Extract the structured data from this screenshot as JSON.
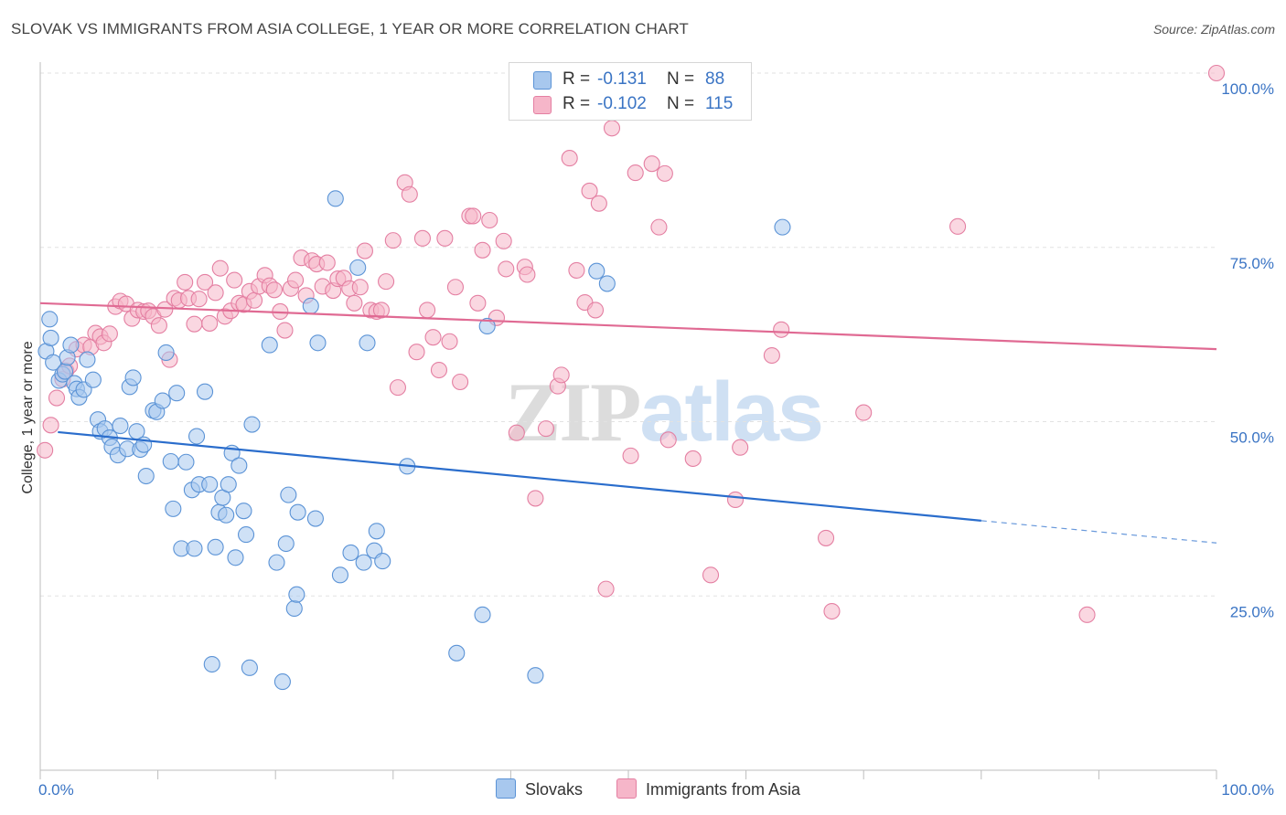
{
  "title": "SLOVAK VS IMMIGRANTS FROM ASIA COLLEGE, 1 YEAR OR MORE CORRELATION CHART",
  "source": "Source: ZipAtlas.com",
  "watermark": {
    "part1": "ZIP",
    "part2": "atlas"
  },
  "legend": {
    "rows": [
      {
        "r_label": "R =",
        "r_value": "-0.131",
        "n_label": "N =",
        "n_value": "88",
        "color": "#a8c8ee"
      },
      {
        "r_label": "R =",
        "r_value": "-0.102",
        "n_label": "N =",
        "n_value": "115",
        "color": "#f6b6c9"
      }
    ]
  },
  "colors": {
    "slovak_fill": "#a8c8ee",
    "slovak_stroke": "#5b93d6",
    "slovak_line": "#2a6dcc",
    "asia_fill": "#f6b6c9",
    "asia_stroke": "#e47fa2",
    "asia_line": "#e06a93",
    "tick_text": "#3a74c4",
    "grid": "#e2e2e2"
  },
  "chart_data": {
    "type": "scatter",
    "title": "SLOVAK VS IMMIGRANTS FROM ASIA COLLEGE, 1 YEAR OR MORE CORRELATION CHART",
    "xlabel": "",
    "ylabel": "College, 1 year or more",
    "xlim": [
      0,
      100
    ],
    "ylim": [
      0,
      100
    ],
    "x_tick_labels": [
      "0.0%",
      "100.0%"
    ],
    "y_tick_labels": [
      "25.0%",
      "50.0%",
      "75.0%",
      "100.0%"
    ],
    "y_ticks": [
      25,
      50,
      75,
      100
    ],
    "grid": true,
    "legend_position": "top-center",
    "series": [
      {
        "name": "Slovaks",
        "r": -0.131,
        "n": 88,
        "trend": {
          "x0": 1.5,
          "y0": 48.5,
          "x1": 80,
          "y1": 35.8,
          "x_dashed_end": 100,
          "y_dashed_end": 32.6
        },
        "points": [
          [
            0.5,
            60.1
          ],
          [
            0.8,
            64.7
          ],
          [
            0.9,
            62.0
          ],
          [
            1.1,
            58.5
          ],
          [
            1.6,
            55.9
          ],
          [
            1.9,
            56.8
          ],
          [
            2.1,
            57.2
          ],
          [
            2.3,
            59.2
          ],
          [
            2.6,
            61.0
          ],
          [
            2.9,
            55.5
          ],
          [
            3.1,
            54.7
          ],
          [
            3.3,
            53.5
          ],
          [
            3.7,
            54.6
          ],
          [
            4.0,
            58.9
          ],
          [
            4.5,
            56.0
          ],
          [
            4.9,
            50.3
          ],
          [
            5.1,
            48.6
          ],
          [
            5.5,
            49.0
          ],
          [
            5.9,
            47.7
          ],
          [
            6.1,
            46.4
          ],
          [
            6.6,
            45.2
          ],
          [
            6.8,
            49.4
          ],
          [
            7.4,
            46.1
          ],
          [
            7.6,
            55.0
          ],
          [
            7.9,
            56.3
          ],
          [
            8.2,
            48.6
          ],
          [
            8.5,
            46.0
          ],
          [
            8.8,
            46.7
          ],
          [
            9.0,
            42.2
          ],
          [
            9.6,
            51.6
          ],
          [
            9.9,
            51.4
          ],
          [
            10.4,
            53.0
          ],
          [
            10.7,
            59.9
          ],
          [
            11.1,
            44.3
          ],
          [
            11.3,
            37.5
          ],
          [
            11.6,
            54.1
          ],
          [
            12.0,
            31.8
          ],
          [
            12.4,
            44.2
          ],
          [
            12.9,
            40.2
          ],
          [
            13.1,
            31.8
          ],
          [
            13.3,
            47.9
          ],
          [
            13.5,
            41.0
          ],
          [
            14.0,
            54.3
          ],
          [
            14.4,
            41.0
          ],
          [
            14.6,
            15.2
          ],
          [
            14.9,
            32.0
          ],
          [
            15.2,
            37.0
          ],
          [
            15.5,
            39.1
          ],
          [
            15.8,
            36.6
          ],
          [
            16.0,
            41.0
          ],
          [
            16.3,
            45.5
          ],
          [
            16.6,
            30.5
          ],
          [
            16.9,
            43.7
          ],
          [
            17.3,
            37.2
          ],
          [
            17.5,
            33.8
          ],
          [
            17.8,
            14.7
          ],
          [
            18.0,
            49.6
          ],
          [
            19.5,
            61.0
          ],
          [
            20.1,
            29.8
          ],
          [
            20.6,
            12.7
          ],
          [
            20.9,
            32.5
          ],
          [
            21.1,
            39.5
          ],
          [
            21.6,
            23.2
          ],
          [
            21.8,
            25.2
          ],
          [
            21.9,
            37.0
          ],
          [
            23.0,
            66.6
          ],
          [
            23.4,
            36.1
          ],
          [
            23.6,
            61.3
          ],
          [
            25.1,
            82.0
          ],
          [
            25.5,
            28.0
          ],
          [
            26.4,
            31.2
          ],
          [
            27.0,
            72.1
          ],
          [
            27.5,
            29.8
          ],
          [
            27.8,
            61.3
          ],
          [
            28.4,
            31.5
          ],
          [
            28.6,
            34.3
          ],
          [
            29.1,
            30.0
          ],
          [
            31.2,
            43.6
          ],
          [
            35.4,
            16.8
          ],
          [
            37.6,
            22.3
          ],
          [
            38.0,
            63.7
          ],
          [
            42.1,
            13.6
          ],
          [
            47.3,
            71.6
          ],
          [
            48.2,
            69.8
          ],
          [
            63.1,
            77.9
          ]
        ]
      },
      {
        "name": "Immigrants from Asia",
        "r": -0.102,
        "n": 115,
        "trend": {
          "x0": 0,
          "y0": 67.0,
          "x1": 100,
          "y1": 60.4
        },
        "points": [
          [
            0.4,
            45.9
          ],
          [
            0.9,
            49.5
          ],
          [
            1.4,
            53.4
          ],
          [
            1.9,
            56.1
          ],
          [
            2.2,
            57.3
          ],
          [
            2.5,
            58.0
          ],
          [
            3.1,
            60.4
          ],
          [
            3.7,
            61.0
          ],
          [
            4.3,
            60.7
          ],
          [
            4.7,
            62.7
          ],
          [
            5.1,
            62.2
          ],
          [
            5.4,
            61.3
          ],
          [
            5.9,
            62.6
          ],
          [
            6.4,
            66.5
          ],
          [
            6.8,
            67.3
          ],
          [
            7.3,
            66.9
          ],
          [
            7.8,
            64.8
          ],
          [
            8.3,
            66.0
          ],
          [
            8.8,
            65.8
          ],
          [
            9.2,
            65.9
          ],
          [
            9.6,
            65.1
          ],
          [
            10.1,
            63.8
          ],
          [
            10.6,
            66.1
          ],
          [
            11.0,
            58.9
          ],
          [
            11.4,
            67.7
          ],
          [
            11.8,
            67.4
          ],
          [
            12.3,
            70.0
          ],
          [
            12.6,
            67.7
          ],
          [
            13.1,
            64.0
          ],
          [
            13.5,
            67.6
          ],
          [
            14.0,
            70.0
          ],
          [
            14.4,
            64.1
          ],
          [
            14.9,
            68.5
          ],
          [
            15.3,
            72.0
          ],
          [
            15.7,
            65.1
          ],
          [
            16.2,
            65.9
          ],
          [
            16.5,
            70.3
          ],
          [
            16.9,
            67.0
          ],
          [
            17.3,
            66.8
          ],
          [
            17.8,
            68.7
          ],
          [
            18.2,
            67.4
          ],
          [
            18.6,
            69.4
          ],
          [
            19.1,
            71.0
          ],
          [
            19.5,
            69.5
          ],
          [
            19.9,
            68.9
          ],
          [
            20.4,
            65.8
          ],
          [
            20.8,
            63.1
          ],
          [
            21.3,
            69.1
          ],
          [
            21.7,
            70.3
          ],
          [
            22.2,
            73.5
          ],
          [
            22.6,
            68.1
          ],
          [
            23.1,
            73.1
          ],
          [
            23.5,
            72.6
          ],
          [
            24.0,
            69.4
          ],
          [
            24.4,
            72.8
          ],
          [
            24.9,
            68.8
          ],
          [
            25.3,
            70.5
          ],
          [
            25.8,
            70.6
          ],
          [
            26.3,
            69.1
          ],
          [
            26.7,
            67.0
          ],
          [
            27.2,
            69.3
          ],
          [
            27.6,
            74.5
          ],
          [
            28.1,
            66.0
          ],
          [
            28.6,
            65.8
          ],
          [
            29.0,
            66.0
          ],
          [
            29.4,
            70.1
          ],
          [
            30.0,
            76.0
          ],
          [
            30.4,
            54.9
          ],
          [
            31.0,
            84.3
          ],
          [
            31.4,
            82.6
          ],
          [
            32.0,
            60.0
          ],
          [
            32.5,
            76.3
          ],
          [
            32.9,
            66.0
          ],
          [
            33.4,
            62.1
          ],
          [
            33.9,
            57.4
          ],
          [
            34.4,
            76.3
          ],
          [
            34.8,
            61.5
          ],
          [
            35.3,
            69.3
          ],
          [
            35.7,
            55.7
          ],
          [
            36.5,
            79.5
          ],
          [
            36.8,
            79.5
          ],
          [
            37.2,
            67.0
          ],
          [
            37.6,
            74.6
          ],
          [
            38.2,
            78.9
          ],
          [
            38.8,
            64.9
          ],
          [
            39.4,
            75.9
          ],
          [
            39.6,
            71.9
          ],
          [
            40.5,
            48.4
          ],
          [
            41.2,
            72.2
          ],
          [
            41.4,
            71.1
          ],
          [
            42.1,
            39.0
          ],
          [
            43.0,
            49.0
          ],
          [
            44.0,
            55.1
          ],
          [
            44.3,
            56.7
          ],
          [
            45.0,
            87.8
          ],
          [
            45.6,
            71.7
          ],
          [
            46.3,
            67.1
          ],
          [
            46.7,
            83.1
          ],
          [
            47.2,
            66.0
          ],
          [
            47.5,
            81.3
          ],
          [
            48.1,
            26.0
          ],
          [
            48.6,
            92.1
          ],
          [
            50.2,
            45.1
          ],
          [
            50.6,
            85.7
          ],
          [
            52.0,
            87.0
          ],
          [
            52.6,
            77.9
          ],
          [
            53.1,
            85.6
          ],
          [
            53.4,
            47.4
          ],
          [
            55.5,
            44.7
          ],
          [
            57.0,
            28.0
          ],
          [
            59.1,
            38.8
          ],
          [
            59.5,
            46.3
          ],
          [
            62.2,
            59.5
          ],
          [
            63.0,
            63.2
          ],
          [
            66.8,
            33.3
          ],
          [
            67.3,
            22.8
          ],
          [
            70.0,
            51.3
          ],
          [
            78.0,
            78.0
          ],
          [
            89.0,
            22.3
          ],
          [
            100.0,
            100.0
          ]
        ]
      }
    ]
  }
}
